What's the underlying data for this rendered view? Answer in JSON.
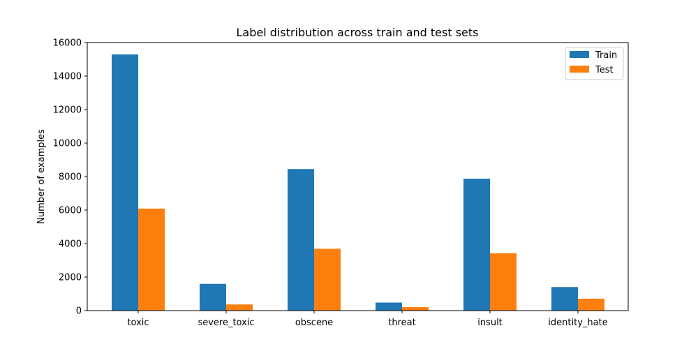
{
  "chart_data": {
    "type": "bar",
    "title": "Label distribution across train and test sets",
    "xlabel": "",
    "ylabel": "Number of examples",
    "categories": [
      "toxic",
      "severe_toxic",
      "obscene",
      "threat",
      "insult",
      "identity_hate"
    ],
    "series": [
      {
        "name": "Train",
        "values": [
          15294,
          1595,
          8449,
          478,
          7877,
          1405
        ],
        "color": "#1f77b4"
      },
      {
        "name": "Test",
        "values": [
          6090,
          367,
          3691,
          211,
          3427,
          712
        ],
        "color": "#ff7f0e"
      }
    ],
    "ylim": [
      0,
      16000
    ],
    "yticks": [
      0,
      2000,
      4000,
      6000,
      8000,
      10000,
      12000,
      14000,
      16000
    ],
    "legend_position": "top-right",
    "grid": false
  }
}
